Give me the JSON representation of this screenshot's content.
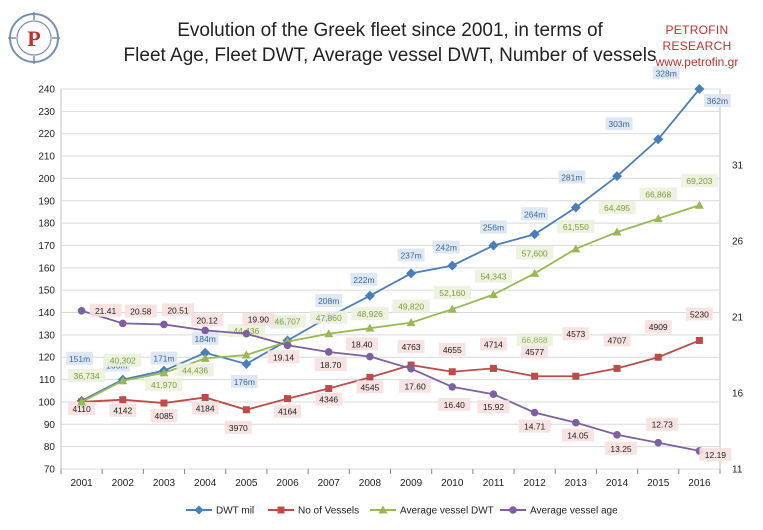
{
  "header": {
    "title_line1": "Evolution of the Greek fleet since 2001, in terms of",
    "title_line2": "Fleet Age, Fleet DWT, Average vessel DWT, Number of vessels",
    "brand_name": "PETROFIN RESEARCH",
    "brand_url": "www.petrofin.gr",
    "logo_letter": "P"
  },
  "chart_data": {
    "type": "line",
    "title": "Evolution of the Greek fleet since 2001, in terms of Fleet Age, Fleet DWT, Average vessel DWT, Number of vessels",
    "categories": [
      "2001",
      "2002",
      "2003",
      "2004",
      "2005",
      "2006",
      "2007",
      "2008",
      "2009",
      "2010",
      "2011",
      "2012",
      "2013",
      "2014",
      "2015",
      "2016"
    ],
    "y_left": {
      "min": 70,
      "max": 240,
      "step": 10,
      "ticks": [
        "70",
        "80",
        "90",
        "100",
        "110",
        "120",
        "130",
        "140",
        "150",
        "160",
        "170",
        "180",
        "190",
        "200",
        "210",
        "220",
        "230",
        "240"
      ]
    },
    "y_right": {
      "min": 11,
      "max": 36,
      "ticks": [
        "11",
        "16",
        "21",
        "26",
        "31"
      ]
    },
    "grid": true,
    "legend_position": "bottom",
    "series": [
      {
        "name": "DWT mil",
        "axis": "left",
        "color": "#4a7ebb",
        "marker": "diamond",
        "values": [
          100.5,
          110,
          114,
          122,
          117,
          127.5,
          138,
          147.5,
          157.5,
          161,
          170,
          175,
          187,
          201,
          217.5,
          240
        ],
        "labels": [
          "151m",
          "166m",
          "171m",
          "184m",
          "176m",
          "194m",
          "208m",
          "222m",
          "237m",
          "242m",
          "256m",
          "264m",
          "281m",
          "303m",
          "328m",
          "362m"
        ],
        "label_bg": "#dbe5f1"
      },
      {
        "name": "No of Vessels",
        "axis": "left",
        "color": "#be4b48",
        "marker": "square",
        "values": [
          100,
          101,
          99.5,
          102,
          96.5,
          101.5,
          106,
          111,
          116.5,
          113.5,
          115,
          111.5,
          111.5,
          115,
          120,
          127.5
        ],
        "labels": [
          "4110",
          "4142",
          "4085",
          "4184",
          "3970",
          "4164",
          "4346",
          "4545",
          "4763",
          "4655",
          "4714",
          "4577",
          "4573",
          "4707",
          "4909",
          "5230"
        ],
        "label_bg": "#f6e0df"
      },
      {
        "name": "Average vessel DWT",
        "axis": "left",
        "color": "#98b954",
        "marker": "triangle",
        "values": [
          100,
          109.5,
          113,
          119.5,
          121,
          127,
          130.5,
          133,
          135.5,
          141.5,
          148,
          157.5,
          168.5,
          176,
          182,
          188
        ],
        "labels": [
          "36,734",
          "40,302",
          "41,970",
          "44,436",
          "44,436",
          "46,707",
          "47,860",
          "48,926",
          "49,820",
          "52,160",
          "54,343",
          "57,600",
          "61,550",
          "64,495",
          "66,868",
          "69,203"
        ],
        "label_bg": "#ebf1de"
      },
      {
        "name": "Average vessel age",
        "axis": "right",
        "color": "#7d60a0",
        "marker": "circle",
        "values": [
          21.41,
          20.58,
          20.51,
          20.12,
          19.9,
          19.14,
          18.7,
          18.4,
          17.6,
          16.4,
          15.92,
          14.71,
          14.05,
          13.25,
          12.73,
          12.19
        ],
        "labels": [
          "21.41",
          "20.58",
          "20.51",
          "20.12",
          "19.90",
          "19.14",
          "18.70",
          "18.40",
          "17.60",
          "16.40",
          "15.92",
          "14.71",
          "14.05",
          "13.25",
          "12.73",
          "12.19"
        ],
        "label_bg": "#f6e0df"
      }
    ],
    "extra_labels": [
      {
        "series": "No of Vessels",
        "text": "66,868"
      }
    ]
  }
}
